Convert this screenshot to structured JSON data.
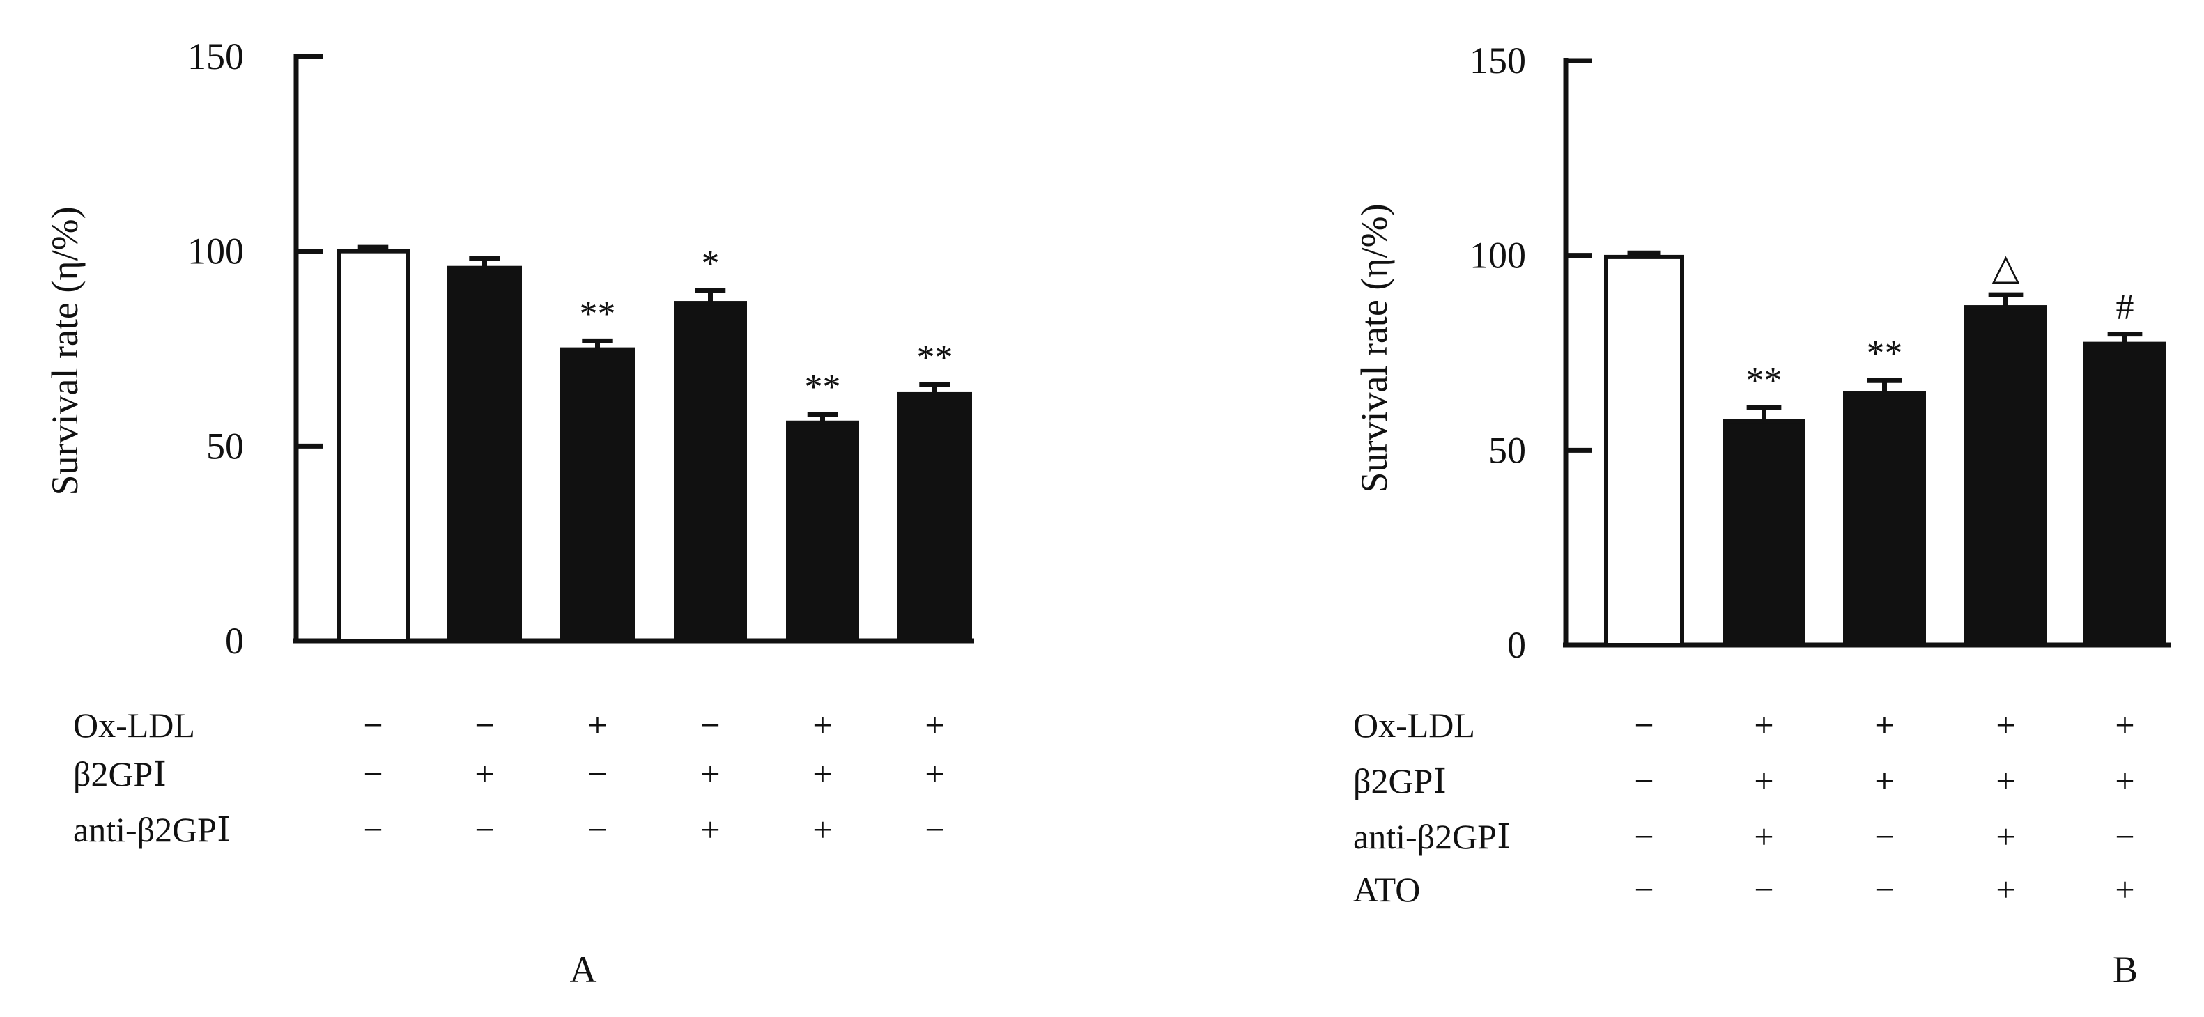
{
  "chart_data": [
    {
      "type": "bar",
      "panel_label": "A",
      "ylabel": "Survival rate (η/%)",
      "ylim": [
        0,
        150
      ],
      "yticks": [
        0,
        50,
        100,
        150
      ],
      "grid": false,
      "values": [
        100,
        95.7,
        74.8,
        86.7,
        56,
        63.3
      ],
      "errors": [
        1,
        2.5,
        2.2,
        3.2,
        2.2,
        2.5
      ],
      "fills": [
        "#ffffff",
        "#111111",
        "#111111",
        "#111111",
        "#111111",
        "#111111"
      ],
      "annotations": [
        "",
        "",
        "**",
        "*",
        "**",
        "**"
      ],
      "conditions": [
        {
          "label": "Ox-LDL",
          "values": [
            "−",
            "−",
            "+",
            "−",
            "+",
            "+"
          ]
        },
        {
          "label": "β2GPⅠ",
          "values": [
            "−",
            "+",
            "−",
            "+",
            "+",
            "+"
          ]
        },
        {
          "label": "anti-β2GPⅠ",
          "values": [
            "−",
            "−",
            "−",
            "+",
            "+",
            "−"
          ]
        }
      ]
    },
    {
      "type": "bar",
      "panel_label": "B",
      "ylabel": "Survival rate (η/%)",
      "ylim": [
        0,
        150
      ],
      "yticks": [
        0,
        50,
        100,
        150
      ],
      "grid": false,
      "values": [
        99.6,
        57.5,
        64.7,
        86.7,
        77.3
      ],
      "errors": [
        1,
        3.5,
        3.2,
        3.2,
        2.5
      ],
      "fills": [
        "#ffffff",
        "#111111",
        "#111111",
        "#111111",
        "#111111"
      ],
      "annotations": [
        "",
        "**",
        "**",
        "△",
        "#"
      ],
      "conditions": [
        {
          "label": "Ox-LDL",
          "values": [
            "−",
            "+",
            "+",
            "+",
            "+"
          ]
        },
        {
          "label": "β2GPⅠ",
          "values": [
            "−",
            "+",
            "+",
            "+",
            "+"
          ]
        },
        {
          "label": "anti-β2GPⅠ",
          "values": [
            "−",
            "+",
            "−",
            "+",
            "−"
          ]
        },
        {
          "label": "ATO",
          "values": [
            "−",
            "−",
            "−",
            "+",
            "+"
          ]
        }
      ]
    }
  ]
}
